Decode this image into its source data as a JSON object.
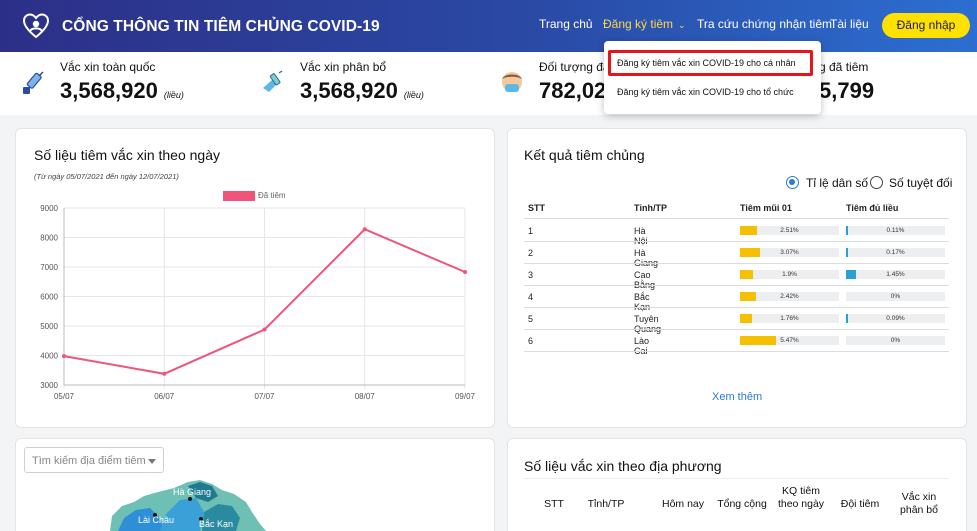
{
  "header": {
    "title": "CỔNG THÔNG TIN TIÊM CHỦNG COVID-19",
    "nav": {
      "home": "Trang chủ",
      "register": "Đăng ký tiêm",
      "lookup": "Tra cứu chứng nhận tiêm",
      "docs": "Tài liệu"
    },
    "login": "Đăng nhập"
  },
  "dropdown": {
    "items": [
      "Đăng ký tiêm vắc xin COVID-19 cho cá nhân",
      "Đăng ký tiêm vắc xin COVID-19 cho tổ chức"
    ]
  },
  "stats": [
    {
      "label": "Vắc xin toàn quốc",
      "value": "3,568,920",
      "unit": "(liều)",
      "icon": "syringe-icon"
    },
    {
      "label": "Vắc xin phân bổ",
      "value": "3,568,920",
      "unit": "(liều)",
      "icon": "vaccine-hand-icon"
    },
    {
      "label": "Đối tượng đã",
      "value": "782,02",
      "icon": "person-mask-icon"
    },
    {
      "label": "g đã tiêm",
      "value": "5,799"
    }
  ],
  "daily_card": {
    "title": "Số liệu tiêm vắc xin theo ngày",
    "subtitle": "(Từ ngày 05/07/2021 đến ngày 12/07/2021)"
  },
  "chart_data": {
    "type": "line",
    "x": [
      "05/07",
      "06/07",
      "07/07",
      "08/07",
      "09/07"
    ],
    "series": [
      {
        "name": "Đã tiêm",
        "values": [
          3980,
          3380,
          4880,
          8280,
          6830
        ],
        "color": "#f0547b"
      }
    ],
    "yticks": [
      3000,
      4000,
      5000,
      6000,
      7000,
      8000,
      9000
    ],
    "ylim": [
      3000,
      9000
    ],
    "grid": true,
    "legend": "top"
  },
  "result_card": {
    "title": "Kết quả tiêm chủng",
    "radio": {
      "ratio": "Tỉ lệ dân số",
      "absolute": "Số tuyệt đối"
    },
    "columns": [
      "STT",
      "Tỉnh/TP",
      "Tiêm mũi 01",
      "Tiêm đủ liều"
    ],
    "rows": [
      {
        "stt": "1",
        "province": "Hà Nội",
        "dose1": "2.51%",
        "dose1_pct": 2.51,
        "full": "0.11%",
        "full_pct": 0.11
      },
      {
        "stt": "2",
        "province": "Hà Giang",
        "dose1": "3.07%",
        "dose1_pct": 3.07,
        "full": "0.17%",
        "full_pct": 0.17
      },
      {
        "stt": "3",
        "province": "Cao Bằng",
        "dose1": "1.9%",
        "dose1_pct": 1.9,
        "full": "1.45%",
        "full_pct": 1.45
      },
      {
        "stt": "4",
        "province": "Bắc Kạn",
        "dose1": "2.42%",
        "dose1_pct": 2.42,
        "full": "0%",
        "full_pct": 0
      },
      {
        "stt": "5",
        "province": "Tuyên Quang",
        "dose1": "1.76%",
        "dose1_pct": 1.76,
        "full": "0.09%",
        "full_pct": 0.09
      },
      {
        "stt": "6",
        "province": "Lào Cai",
        "dose1": "5.47%",
        "dose1_pct": 5.47,
        "full": "0%",
        "full_pct": 0
      }
    ],
    "more": "Xem thêm"
  },
  "map_card": {
    "search_placeholder": "Tìm kiếm địa điểm tiêm",
    "labels": [
      "Hà Giang",
      "Lài Châu",
      "Bắc Kạn"
    ]
  },
  "local_card": {
    "title": "Số liệu vắc xin theo địa phương",
    "columns": [
      "STT",
      "Tỉnh/TP",
      "Hôm nay",
      "Tổng cộng",
      "KQ tiêm theo ngày",
      "Đội tiêm",
      "Vắc xin phân bổ"
    ]
  },
  "colors": {
    "accent": "#2a79d6",
    "brand_dark": "#2d2f87",
    "login": "#ffe100",
    "line": "#f0547b",
    "dose1_bar": "#f5c000",
    "full_bar": "#2a9fd6",
    "highlight": "#e3141b"
  }
}
